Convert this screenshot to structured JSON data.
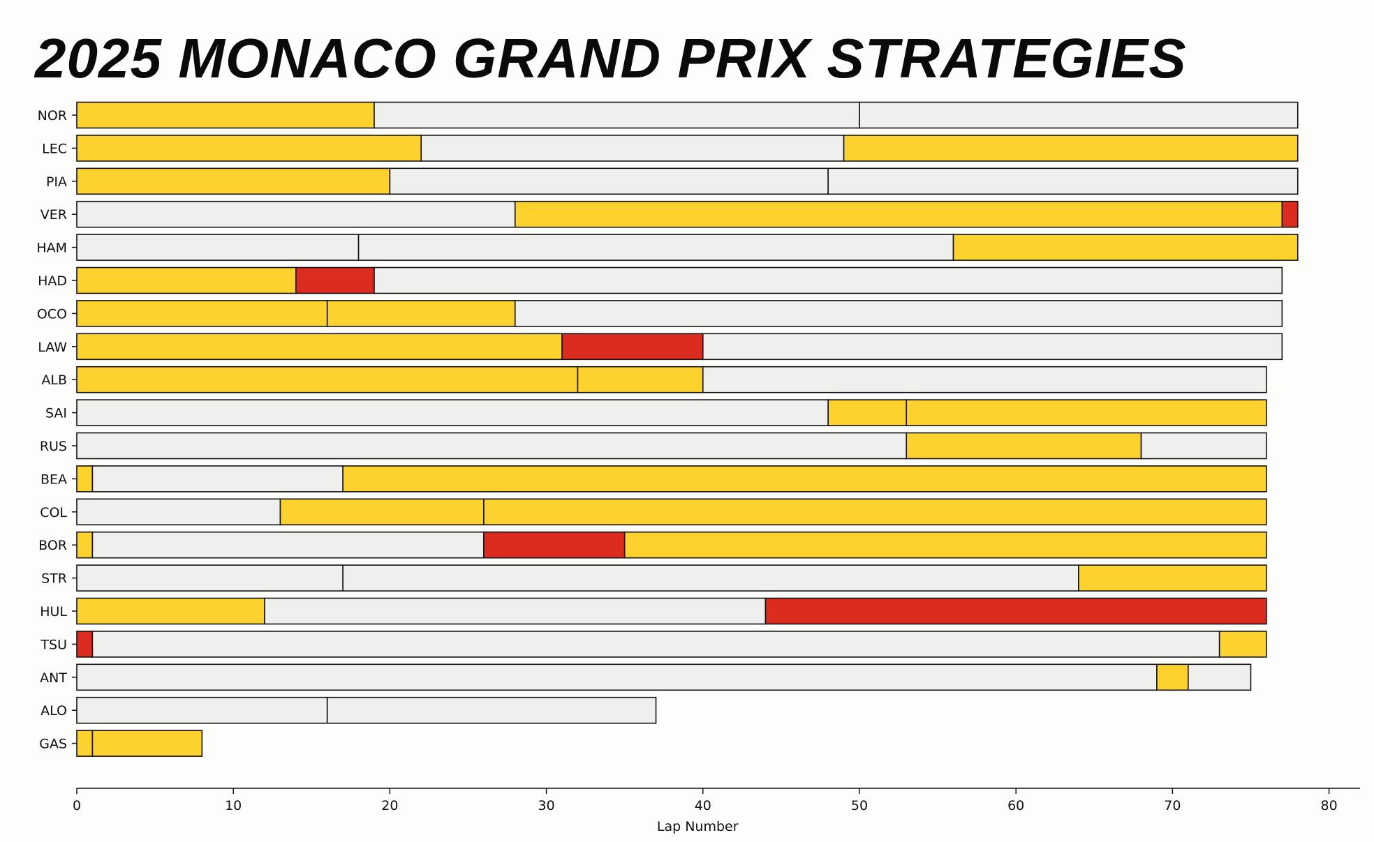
{
  "title": "2025 MONACO GRAND PRIX STRATEGIES",
  "chart_data": {
    "type": "bar",
    "orientation": "horizontal-stacked",
    "title": "2025 MONACO GRAND PRIX STRATEGIES",
    "xlabel": "Lap Number",
    "ylabel": "",
    "xlim": [
      0,
      82
    ],
    "xticks": [
      0,
      10,
      20,
      30,
      40,
      50,
      60,
      70,
      80
    ],
    "grid": false,
    "legend": "none",
    "colors": {
      "yellow": "#fdd12e",
      "white": "#efefed",
      "red": "#dc2b1f",
      "edge": "#111111"
    },
    "drivers": [
      {
        "driver": "NOR",
        "stints": [
          {
            "start": 0,
            "end": 19,
            "compound": "yellow"
          },
          {
            "start": 19,
            "end": 50,
            "compound": "white"
          },
          {
            "start": 50,
            "end": 78,
            "compound": "white"
          }
        ]
      },
      {
        "driver": "LEC",
        "stints": [
          {
            "start": 0,
            "end": 22,
            "compound": "yellow"
          },
          {
            "start": 22,
            "end": 49,
            "compound": "white"
          },
          {
            "start": 49,
            "end": 78,
            "compound": "yellow"
          }
        ]
      },
      {
        "driver": "PIA",
        "stints": [
          {
            "start": 0,
            "end": 20,
            "compound": "yellow"
          },
          {
            "start": 20,
            "end": 48,
            "compound": "white"
          },
          {
            "start": 48,
            "end": 78,
            "compound": "white"
          }
        ]
      },
      {
        "driver": "VER",
        "stints": [
          {
            "start": 0,
            "end": 28,
            "compound": "white"
          },
          {
            "start": 28,
            "end": 77,
            "compound": "yellow"
          },
          {
            "start": 77,
            "end": 78,
            "compound": "red"
          }
        ]
      },
      {
        "driver": "HAM",
        "stints": [
          {
            "start": 0,
            "end": 18,
            "compound": "white"
          },
          {
            "start": 18,
            "end": 56,
            "compound": "white"
          },
          {
            "start": 56,
            "end": 78,
            "compound": "yellow"
          }
        ]
      },
      {
        "driver": "HAD",
        "stints": [
          {
            "start": 0,
            "end": 14,
            "compound": "yellow"
          },
          {
            "start": 14,
            "end": 19,
            "compound": "red"
          },
          {
            "start": 19,
            "end": 77,
            "compound": "white"
          }
        ]
      },
      {
        "driver": "OCO",
        "stints": [
          {
            "start": 0,
            "end": 16,
            "compound": "yellow"
          },
          {
            "start": 16,
            "end": 28,
            "compound": "yellow"
          },
          {
            "start": 28,
            "end": 77,
            "compound": "white"
          }
        ]
      },
      {
        "driver": "LAW",
        "stints": [
          {
            "start": 0,
            "end": 31,
            "compound": "yellow"
          },
          {
            "start": 31,
            "end": 40,
            "compound": "red"
          },
          {
            "start": 40,
            "end": 77,
            "compound": "white"
          }
        ]
      },
      {
        "driver": "ALB",
        "stints": [
          {
            "start": 0,
            "end": 32,
            "compound": "yellow"
          },
          {
            "start": 32,
            "end": 40,
            "compound": "yellow"
          },
          {
            "start": 40,
            "end": 76,
            "compound": "white"
          }
        ]
      },
      {
        "driver": "SAI",
        "stints": [
          {
            "start": 0,
            "end": 48,
            "compound": "white"
          },
          {
            "start": 48,
            "end": 53,
            "compound": "yellow"
          },
          {
            "start": 53,
            "end": 76,
            "compound": "yellow"
          }
        ]
      },
      {
        "driver": "RUS",
        "stints": [
          {
            "start": 0,
            "end": 53,
            "compound": "white"
          },
          {
            "start": 53,
            "end": 68,
            "compound": "yellow"
          },
          {
            "start": 68,
            "end": 76,
            "compound": "white"
          }
        ]
      },
      {
        "driver": "BEA",
        "stints": [
          {
            "start": 0,
            "end": 1,
            "compound": "yellow"
          },
          {
            "start": 1,
            "end": 17,
            "compound": "white"
          },
          {
            "start": 17,
            "end": 76,
            "compound": "yellow"
          }
        ]
      },
      {
        "driver": "COL",
        "stints": [
          {
            "start": 0,
            "end": 13,
            "compound": "white"
          },
          {
            "start": 13,
            "end": 26,
            "compound": "yellow"
          },
          {
            "start": 26,
            "end": 76,
            "compound": "yellow"
          }
        ]
      },
      {
        "driver": "BOR",
        "stints": [
          {
            "start": 0,
            "end": 1,
            "compound": "yellow"
          },
          {
            "start": 1,
            "end": 26,
            "compound": "white"
          },
          {
            "start": 26,
            "end": 35,
            "compound": "red"
          },
          {
            "start": 35,
            "end": 76,
            "compound": "yellow"
          }
        ]
      },
      {
        "driver": "STR",
        "stints": [
          {
            "start": 0,
            "end": 17,
            "compound": "white"
          },
          {
            "start": 17,
            "end": 64,
            "compound": "white"
          },
          {
            "start": 64,
            "end": 76,
            "compound": "yellow"
          }
        ]
      },
      {
        "driver": "HUL",
        "stints": [
          {
            "start": 0,
            "end": 12,
            "compound": "yellow"
          },
          {
            "start": 12,
            "end": 44,
            "compound": "white"
          },
          {
            "start": 44,
            "end": 76,
            "compound": "red"
          }
        ]
      },
      {
        "driver": "TSU",
        "stints": [
          {
            "start": 0,
            "end": 1,
            "compound": "red"
          },
          {
            "start": 1,
            "end": 73,
            "compound": "white"
          },
          {
            "start": 73,
            "end": 76,
            "compound": "yellow"
          }
        ]
      },
      {
        "driver": "ANT",
        "stints": [
          {
            "start": 0,
            "end": 69,
            "compound": "white"
          },
          {
            "start": 69,
            "end": 71,
            "compound": "yellow"
          },
          {
            "start": 71,
            "end": 75,
            "compound": "white"
          }
        ]
      },
      {
        "driver": "ALO",
        "stints": [
          {
            "start": 0,
            "end": 16,
            "compound": "white"
          },
          {
            "start": 16,
            "end": 37,
            "compound": "white"
          }
        ]
      },
      {
        "driver": "GAS",
        "stints": [
          {
            "start": 0,
            "end": 1,
            "compound": "yellow"
          },
          {
            "start": 1,
            "end": 8,
            "compound": "yellow"
          }
        ]
      }
    ]
  }
}
